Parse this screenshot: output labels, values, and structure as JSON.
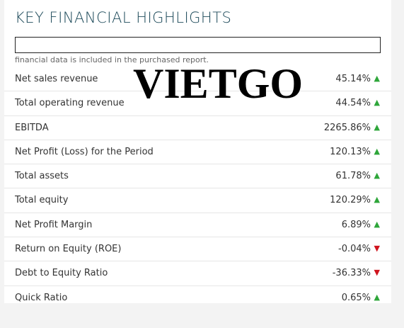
{
  "header": {
    "title": "KEY FINANCIAL HIGHLIGHTS",
    "note": "financial data is included in the purchased report."
  },
  "watermark": "VIETGO",
  "table": {
    "rows": [
      {
        "label": "Net sales revenue",
        "value": "45.14%",
        "trend": "up"
      },
      {
        "label": "Total operating revenue",
        "value": "44.54%",
        "trend": "up"
      },
      {
        "label": "EBITDA",
        "value": "2265.86%",
        "trend": "up"
      },
      {
        "label": "Net Profit (Loss) for the Period",
        "value": "120.13%",
        "trend": "up"
      },
      {
        "label": "Total assets",
        "value": "61.78%",
        "trend": "up"
      },
      {
        "label": "Total equity",
        "value": "120.29%",
        "trend": "up"
      },
      {
        "label": "Net Profit Margin",
        "value": "6.89%",
        "trend": "up"
      },
      {
        "label": "Return on Equity (ROE)",
        "value": "-0.04%",
        "trend": "down"
      },
      {
        "label": "Debt to Equity Ratio",
        "value": "-36.33%",
        "trend": "down"
      },
      {
        "label": "Quick Ratio",
        "value": "0.65%",
        "trend": "up"
      }
    ]
  }
}
